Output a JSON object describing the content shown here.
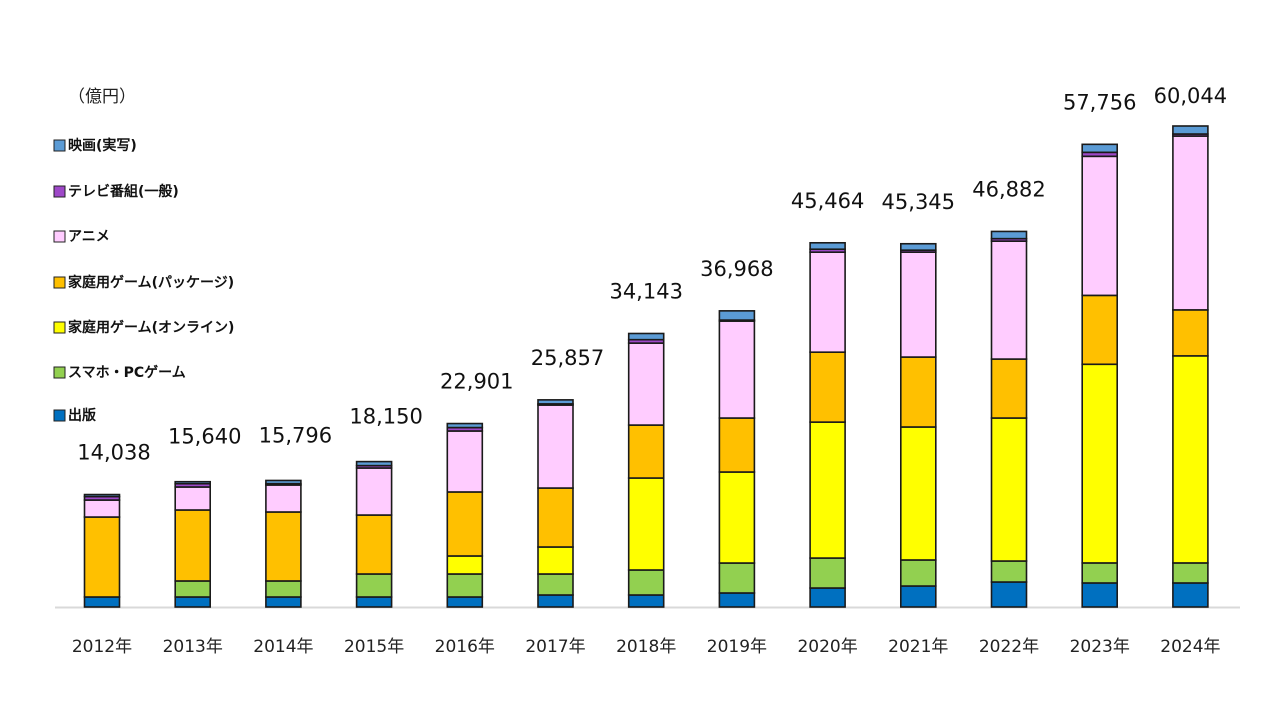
{
  "chart_data": {
    "type": "bar",
    "stacked": true,
    "title": "",
    "unit_label": "（億円）",
    "xlabel": "",
    "ylabel": "（億円）",
    "ylim": [
      0,
      62000
    ],
    "grid": false,
    "legend_position": "left",
    "categories": [
      "2012年",
      "2013年",
      "2014年",
      "2015年",
      "2016年",
      "2017年",
      "2018年",
      "2019年",
      "2020年",
      "2021年",
      "2022年",
      "2023年",
      "2024年"
    ],
    "totals": [
      14038,
      15640,
      15796,
      18150,
      22901,
      25857,
      34143,
      36968,
      45464,
      45345,
      46882,
      57756,
      60044
    ],
    "total_labels": [
      "14,038",
      "15,640",
      "15,796",
      "18,150",
      "22,901",
      "25,857",
      "34,143",
      "36,968",
      "45,464",
      "45,345",
      "46,882",
      "57,756",
      "60,044"
    ],
    "series": [
      {
        "name": "出版",
        "color": "#0070C0",
        "values": [
          1250,
          1250,
          1250,
          1250,
          1250,
          1500,
          1500,
          1750,
          2370,
          2620,
          3120,
          3000,
          3000
        ]
      },
      {
        "name": "スマホ・PCゲーム",
        "color": "#92D050",
        "values": [
          0,
          2000,
          2000,
          2870,
          2870,
          2620,
          3120,
          3740,
          3740,
          3250,
          2620,
          2500,
          2500
        ]
      },
      {
        "name": "家庭用ゲーム(オンライン)",
        "color": "#FFFF00",
        "values": [
          0,
          0,
          0,
          0,
          2250,
          3370,
          11480,
          11360,
          16970,
          16600,
          17850,
          24800,
          25850
        ]
      },
      {
        "name": "家庭用ゲーム(パッケージ)",
        "color": "#FFC000",
        "values": [
          9980,
          8860,
          8610,
          7360,
          7990,
          7360,
          6610,
          6740,
          8730,
          8730,
          7360,
          8600,
          5740
        ]
      },
      {
        "name": "アニメ",
        "color": "#FFCCFF",
        "values": [
          2120,
          2870,
          3370,
          5870,
          7610,
          10360,
          10230,
          12100,
          12480,
          13100,
          14720,
          17360,
          21700
        ]
      },
      {
        "name": "テレビ番組(一般)",
        "color": "#9E48C8",
        "values": [
          438,
          410,
          166,
          300,
          431,
          147,
          433,
          128,
          374,
          245,
          312,
          496,
          254
        ]
      },
      {
        "name": "映画(実写)",
        "color": "#5B9BD5",
        "values": [
          250,
          250,
          400,
          500,
          500,
          500,
          770,
          1150,
          800,
          800,
          900,
          1000,
          1000
        ]
      }
    ]
  },
  "legend": {
    "items": [
      {
        "label": "映画(実写)",
        "color": "#5B9BD5"
      },
      {
        "label": "テレビ番組(一般)",
        "color": "#9E48C8"
      },
      {
        "label": "アニメ",
        "color": "#FFCCFF"
      },
      {
        "label": "家庭用ゲーム(パッケージ)",
        "color": "#FFC000"
      },
      {
        "label": "家庭用ゲーム(オンライン)",
        "color": "#FFFF00"
      },
      {
        "label": "スマホ・PCゲーム",
        "color": "#92D050"
      },
      {
        "label": "出版",
        "color": "#0070C0"
      }
    ]
  }
}
